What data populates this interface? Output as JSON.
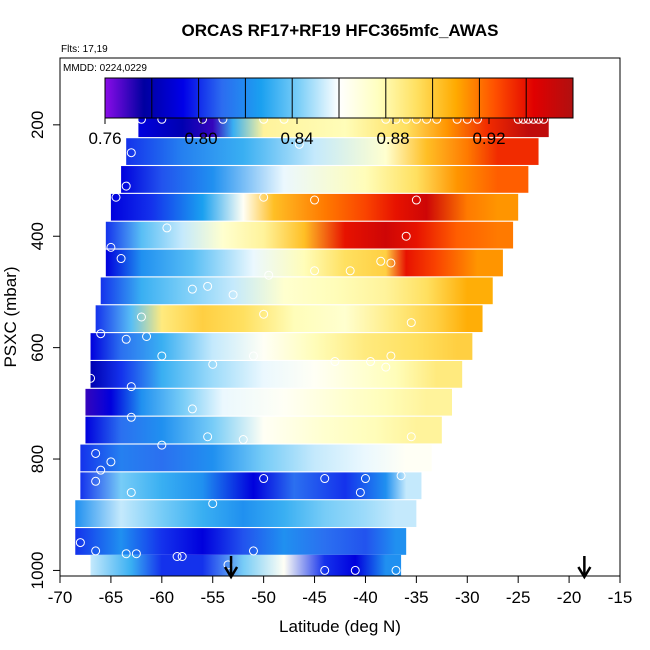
{
  "chart_data": {
    "type": "heatmap",
    "title": "ORCAS RF17+RF19 HFC365mfc_AWAS",
    "notes": [
      "Flts: 17,19",
      "MMDD: 0224,0229"
    ],
    "xlabel": "Latitude (deg N)",
    "ylabel": "PSXC (mbar)",
    "xlim": [
      -70,
      -15
    ],
    "ylim": [
      1010,
      80
    ],
    "y_reversed": true,
    "x_ticks": [
      -70,
      -65,
      -60,
      -55,
      -50,
      -45,
      -40,
      -35,
      -30,
      -25,
      -20,
      -15
    ],
    "x_tick_labels": [
      "-70",
      "-65",
      "-60",
      "-55",
      "-50",
      "-45",
      "-40",
      "-35",
      "-30",
      "-25",
      "-20",
      "-15"
    ],
    "y_ticks": [
      200,
      400,
      600,
      800,
      1000
    ],
    "y_tick_labels": [
      "200",
      "400",
      "600",
      "800",
      "1000"
    ],
    "colorbar": {
      "min": 0.76,
      "max": 0.955,
      "ticks": [
        0.76,
        0.8,
        0.84,
        0.88,
        0.92
      ],
      "tick_labels": [
        "0.76",
        "0.80",
        "0.84",
        "0.88",
        "0.92"
      ],
      "colors": [
        "#8a0ce8",
        "#0000a0",
        "#0000e8",
        "#2c6cf0",
        "#1aa0f0",
        "#7fd0f8",
        "#ffffff",
        "#ffffc0",
        "#ffe060",
        "#ffaa00",
        "#ff5000",
        "#e00000",
        "#b01010"
      ]
    },
    "bands": [
      {
        "p": 198,
        "x0": -62.3,
        "x1": -22.0,
        "stops": [
          [
            -62.3,
            0.79
          ],
          [
            -58,
            0.78
          ],
          [
            -55,
            0.77
          ],
          [
            -53,
            0.83
          ],
          [
            -50,
            0.88
          ],
          [
            -42,
            0.875
          ],
          [
            -36,
            0.89
          ],
          [
            -32,
            0.91
          ],
          [
            -28,
            0.93
          ],
          [
            -24,
            0.95
          ]
        ]
      },
      {
        "p": 248,
        "x0": -63.5,
        "x1": -23.0,
        "stops": [
          [
            -63.5,
            0.8
          ],
          [
            -58,
            0.815
          ],
          [
            -52,
            0.83
          ],
          [
            -45,
            0.85
          ],
          [
            -38,
            0.87
          ],
          [
            -34,
            0.9
          ],
          [
            -30,
            0.915
          ],
          [
            -27,
            0.93
          ]
        ]
      },
      {
        "p": 298,
        "x0": -64.0,
        "x1": -24.0,
        "stops": [
          [
            -64,
            0.79
          ],
          [
            -60,
            0.805
          ],
          [
            -55,
            0.82
          ],
          [
            -48,
            0.855
          ],
          [
            -40,
            0.875
          ],
          [
            -35,
            0.89
          ],
          [
            -31,
            0.91
          ],
          [
            -27,
            0.92
          ]
        ]
      },
      {
        "p": 348,
        "x0": -65.0,
        "x1": -25.0,
        "stops": [
          [
            -65,
            0.79
          ],
          [
            -61,
            0.8
          ],
          [
            -56,
            0.825
          ],
          [
            -52,
            0.86
          ],
          [
            -49,
            0.9
          ],
          [
            -44,
            0.915
          ],
          [
            -40,
            0.925
          ],
          [
            -37,
            0.935
          ],
          [
            -34,
            0.945
          ],
          [
            -30,
            0.915
          ],
          [
            -27,
            0.91
          ]
        ]
      },
      {
        "p": 398,
        "x0": -65.5,
        "x1": -25.5,
        "stops": [
          [
            -65.5,
            0.8
          ],
          [
            -62,
            0.835
          ],
          [
            -58,
            0.85
          ],
          [
            -54,
            0.87
          ],
          [
            -50,
            0.88
          ],
          [
            -46,
            0.9
          ],
          [
            -42,
            0.935
          ],
          [
            -38,
            0.945
          ],
          [
            -35,
            0.935
          ],
          [
            -31,
            0.92
          ],
          [
            -27,
            0.915
          ]
        ]
      },
      {
        "p": 448,
        "x0": -65.5,
        "x1": -26.5,
        "stops": [
          [
            -65.5,
            0.79
          ],
          [
            -62,
            0.82
          ],
          [
            -57,
            0.835
          ],
          [
            -51,
            0.855
          ],
          [
            -46,
            0.875
          ],
          [
            -42,
            0.89
          ],
          [
            -38,
            0.895
          ],
          [
            -36,
            0.935
          ],
          [
            -33,
            0.925
          ],
          [
            -29,
            0.91
          ]
        ]
      },
      {
        "p": 498,
        "x0": -66.0,
        "x1": -27.5,
        "stops": [
          [
            -66,
            0.8
          ],
          [
            -62,
            0.83
          ],
          [
            -58,
            0.84
          ],
          [
            -53,
            0.85
          ],
          [
            -48,
            0.87
          ],
          [
            -43,
            0.875
          ],
          [
            -38,
            0.88
          ],
          [
            -34,
            0.89
          ],
          [
            -30,
            0.905
          ]
        ]
      },
      {
        "p": 548,
        "x0": -66.5,
        "x1": -28.5,
        "stops": [
          [
            -66.5,
            0.8
          ],
          [
            -63,
            0.835
          ],
          [
            -60,
            0.885
          ],
          [
            -56,
            0.895
          ],
          [
            -52,
            0.89
          ],
          [
            -47,
            0.875
          ],
          [
            -42,
            0.87
          ],
          [
            -37,
            0.885
          ],
          [
            -33,
            0.895
          ],
          [
            -30,
            0.905
          ]
        ]
      },
      {
        "p": 598,
        "x0": -67.0,
        "x1": -29.5,
        "stops": [
          [
            -67,
            0.79
          ],
          [
            -64,
            0.81
          ],
          [
            -60,
            0.83
          ],
          [
            -55,
            0.85
          ],
          [
            -50,
            0.86
          ],
          [
            -45,
            0.875
          ],
          [
            -40,
            0.885
          ],
          [
            -35,
            0.89
          ],
          [
            -31,
            0.895
          ]
        ]
      },
      {
        "p": 648,
        "x0": -67.0,
        "x1": -30.5,
        "stops": [
          [
            -67,
            0.78
          ],
          [
            -64,
            0.8
          ],
          [
            -60,
            0.83
          ],
          [
            -55,
            0.845
          ],
          [
            -50,
            0.855
          ],
          [
            -45,
            0.86
          ],
          [
            -40,
            0.87
          ],
          [
            -37,
            0.875
          ],
          [
            -33,
            0.885
          ]
        ]
      },
      {
        "p": 698,
        "x0": -67.5,
        "x1": -31.5,
        "stops": [
          [
            -67.5,
            0.77
          ],
          [
            -65,
            0.79
          ],
          [
            -62,
            0.82
          ],
          [
            -58,
            0.84
          ],
          [
            -54,
            0.855
          ],
          [
            -48,
            0.86
          ],
          [
            -42,
            0.87
          ],
          [
            -38,
            0.875
          ],
          [
            -34,
            0.88
          ]
        ]
      },
      {
        "p": 748,
        "x0": -67.5,
        "x1": -32.5,
        "stops": [
          [
            -67.5,
            0.79
          ],
          [
            -64,
            0.81
          ],
          [
            -60,
            0.82
          ],
          [
            -55,
            0.84
          ],
          [
            -50,
            0.86
          ],
          [
            -44,
            0.87
          ],
          [
            -39,
            0.875
          ],
          [
            -35,
            0.88
          ]
        ]
      },
      {
        "p": 798,
        "x0": -68.0,
        "x1": -33.5,
        "stops": [
          [
            -68,
            0.8
          ],
          [
            -64,
            0.815
          ],
          [
            -60,
            0.81
          ],
          [
            -55,
            0.82
          ],
          [
            -50,
            0.84
          ],
          [
            -45,
            0.85
          ],
          [
            -40,
            0.855
          ],
          [
            -36,
            0.86
          ]
        ]
      },
      {
        "p": 848,
        "x0": -68.0,
        "x1": -34.5,
        "stops": [
          [
            -68,
            0.8
          ],
          [
            -64,
            0.84
          ],
          [
            -60,
            0.83
          ],
          [
            -56,
            0.82
          ],
          [
            -51,
            0.79
          ],
          [
            -47,
            0.81
          ],
          [
            -42,
            0.8
          ],
          [
            -38,
            0.82
          ],
          [
            -36,
            0.85
          ]
        ]
      },
      {
        "p": 898,
        "x0": -68.5,
        "x1": -35.0,
        "stops": [
          [
            -68.5,
            0.82
          ],
          [
            -64,
            0.85
          ],
          [
            -60,
            0.84
          ],
          [
            -56,
            0.83
          ],
          [
            -52,
            0.82
          ],
          [
            -48,
            0.83
          ],
          [
            -44,
            0.84
          ],
          [
            -40,
            0.845
          ],
          [
            -37,
            0.85
          ]
        ]
      },
      {
        "p": 948,
        "x0": -68.5,
        "x1": -36.0,
        "stops": [
          [
            -68.5,
            0.8
          ],
          [
            -64,
            0.82
          ],
          [
            -60,
            0.8
          ],
          [
            -56,
            0.79
          ],
          [
            -52,
            0.805
          ],
          [
            -48,
            0.82
          ],
          [
            -44,
            0.81
          ],
          [
            -40,
            0.805
          ],
          [
            -37,
            0.82
          ]
        ]
      },
      {
        "p": 996,
        "x0": -67.0,
        "x1": -36.5,
        "stops": [
          [
            -67,
            0.85
          ],
          [
            -63,
            0.83
          ],
          [
            -60,
            0.8
          ],
          [
            -56,
            0.8
          ],
          [
            -52,
            0.84
          ],
          [
            -48,
            0.86
          ],
          [
            -44,
            0.8
          ],
          [
            -41,
            0.79
          ],
          [
            -38,
            0.82
          ]
        ]
      }
    ],
    "samples": [
      {
        "x": -62,
        "p": 190
      },
      {
        "x": -60,
        "p": 190
      },
      {
        "x": -56,
        "p": 190
      },
      {
        "x": -54,
        "p": 190
      },
      {
        "x": -50,
        "p": 190
      },
      {
        "x": -48,
        "p": 190
      },
      {
        "x": -38,
        "p": 190
      },
      {
        "x": -37,
        "p": 190
      },
      {
        "x": -36,
        "p": 190
      },
      {
        "x": -35,
        "p": 190
      },
      {
        "x": -34,
        "p": 190
      },
      {
        "x": -33,
        "p": 190
      },
      {
        "x": -31,
        "p": 190
      },
      {
        "x": -30,
        "p": 190
      },
      {
        "x": -29,
        "p": 190
      },
      {
        "x": -25,
        "p": 190
      },
      {
        "x": -24.5,
        "p": 190
      },
      {
        "x": -24,
        "p": 190
      },
      {
        "x": -23.5,
        "p": 190
      },
      {
        "x": -23,
        "p": 190
      },
      {
        "x": -22.5,
        "p": 190
      },
      {
        "x": -63,
        "p": 250
      },
      {
        "x": -46.5,
        "p": 235
      },
      {
        "x": -63.5,
        "p": 310
      },
      {
        "x": -64.5,
        "p": 330
      },
      {
        "x": -50,
        "p": 330
      },
      {
        "x": -45,
        "p": 335
      },
      {
        "x": -35,
        "p": 335
      },
      {
        "x": -66,
        "p": 345
      },
      {
        "x": -59.5,
        "p": 385
      },
      {
        "x": -36,
        "p": 400
      },
      {
        "x": -65,
        "p": 420
      },
      {
        "x": -64,
        "p": 440
      },
      {
        "x": -38.5,
        "p": 445
      },
      {
        "x": -37.5,
        "p": 448
      },
      {
        "x": -45,
        "p": 462
      },
      {
        "x": -41.5,
        "p": 462
      },
      {
        "x": -66,
        "p": 465
      },
      {
        "x": -49.5,
        "p": 470
      },
      {
        "x": -57,
        "p": 495
      },
      {
        "x": -55.5,
        "p": 490
      },
      {
        "x": -53,
        "p": 505
      },
      {
        "x": -62,
        "p": 545
      },
      {
        "x": -50,
        "p": 540
      },
      {
        "x": -35.5,
        "p": 555
      },
      {
        "x": -66,
        "p": 575
      },
      {
        "x": -63.5,
        "p": 585
      },
      {
        "x": -61.5,
        "p": 580
      },
      {
        "x": -60,
        "p": 615
      },
      {
        "x": -55,
        "p": 630
      },
      {
        "x": -51,
        "p": 615
      },
      {
        "x": -43,
        "p": 625
      },
      {
        "x": -39.5,
        "p": 625
      },
      {
        "x": -38,
        "p": 635
      },
      {
        "x": -37.5,
        "p": 615
      },
      {
        "x": -67,
        "p": 655
      },
      {
        "x": -63,
        "p": 670
      },
      {
        "x": -57,
        "p": 710
      },
      {
        "x": -63,
        "p": 725
      },
      {
        "x": -55.5,
        "p": 760
      },
      {
        "x": -60,
        "p": 775
      },
      {
        "x": -52,
        "p": 765
      },
      {
        "x": -35.5,
        "p": 760
      },
      {
        "x": -66.5,
        "p": 790
      },
      {
        "x": -65,
        "p": 805
      },
      {
        "x": -66,
        "p": 820
      },
      {
        "x": -50,
        "p": 835
      },
      {
        "x": -44,
        "p": 835
      },
      {
        "x": -40,
        "p": 835
      },
      {
        "x": -36.5,
        "p": 830
      },
      {
        "x": -66.5,
        "p": 840
      },
      {
        "x": -63,
        "p": 860
      },
      {
        "x": -55,
        "p": 880
      },
      {
        "x": -40.5,
        "p": 860
      },
      {
        "x": -68,
        "p": 950
      },
      {
        "x": -66.5,
        "p": 965
      },
      {
        "x": -63.5,
        "p": 970
      },
      {
        "x": -62.5,
        "p": 970
      },
      {
        "x": -58.5,
        "p": 975
      },
      {
        "x": -58,
        "p": 975
      },
      {
        "x": -53.5,
        "p": 990
      },
      {
        "x": -51,
        "p": 965
      },
      {
        "x": -44,
        "p": 1000
      },
      {
        "x": -41,
        "p": 1000
      },
      {
        "x": -37,
        "p": 1000
      }
    ],
    "arrows": [
      {
        "x": -53.2
      },
      {
        "x": -18.5
      }
    ]
  }
}
